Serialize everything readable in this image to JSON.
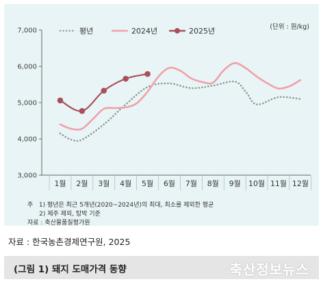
{
  "chart_data": {
    "type": "line",
    "categories": [
      "1월",
      "2월",
      "3월",
      "4월",
      "5월",
      "6월",
      "7월",
      "8월",
      "9월",
      "10월",
      "11월",
      "12월"
    ],
    "ylim": [
      3000,
      7000
    ],
    "yticks": [
      "3,000",
      "4,000",
      "5,000",
      "6,000",
      "7,000"
    ],
    "unit": "(단위 : 원/kg)",
    "legend_position": "top-left",
    "grid": false,
    "series": [
      {
        "name": "평년",
        "style": "dotted",
        "color": "#8a9a8f",
        "x": [
          1,
          1.5,
          2,
          3,
          4,
          5,
          6,
          7,
          8,
          9,
          9.5,
          10,
          11,
          12
        ],
        "values": [
          4150,
          3980,
          3980,
          4400,
          4950,
          5430,
          5530,
          5400,
          5470,
          5580,
          5300,
          4950,
          5150,
          5100
        ]
      },
      {
        "name": "2024년",
        "style": "solid",
        "color": "#f0a0a8",
        "x": [
          1,
          1.5,
          2,
          2.5,
          3,
          3.5,
          4,
          4.5,
          5,
          5.5,
          6,
          6.5,
          7,
          7.5,
          8,
          8.5,
          9,
          9.5,
          10,
          10.5,
          11,
          11.5,
          12
        ],
        "values": [
          4400,
          4280,
          4280,
          4550,
          4830,
          4850,
          4870,
          4980,
          5300,
          5720,
          5960,
          5880,
          5670,
          5570,
          5550,
          5900,
          6090,
          5950,
          5720,
          5530,
          5390,
          5450,
          5620
        ]
      },
      {
        "name": "2025년",
        "style": "solid-marker",
        "color": "#a8505a",
        "x": [
          1,
          2,
          3,
          4,
          5
        ],
        "values": [
          5060,
          4770,
          5330,
          5660,
          5790
        ]
      }
    ]
  },
  "notes": [
    "주   1) 평년은 최근 5개년(2020~2024년)의 최대, 최소를 제외한 평균",
    "      2) 제주 제외, 탕박 기준",
    "자료 : 축산물품질평가원"
  ],
  "source": "자료 : 한국농촌경제연구원, 2025",
  "caption": "(그림 1) 돼지 도매가격 동향",
  "watermark": "축산정보뉴스"
}
